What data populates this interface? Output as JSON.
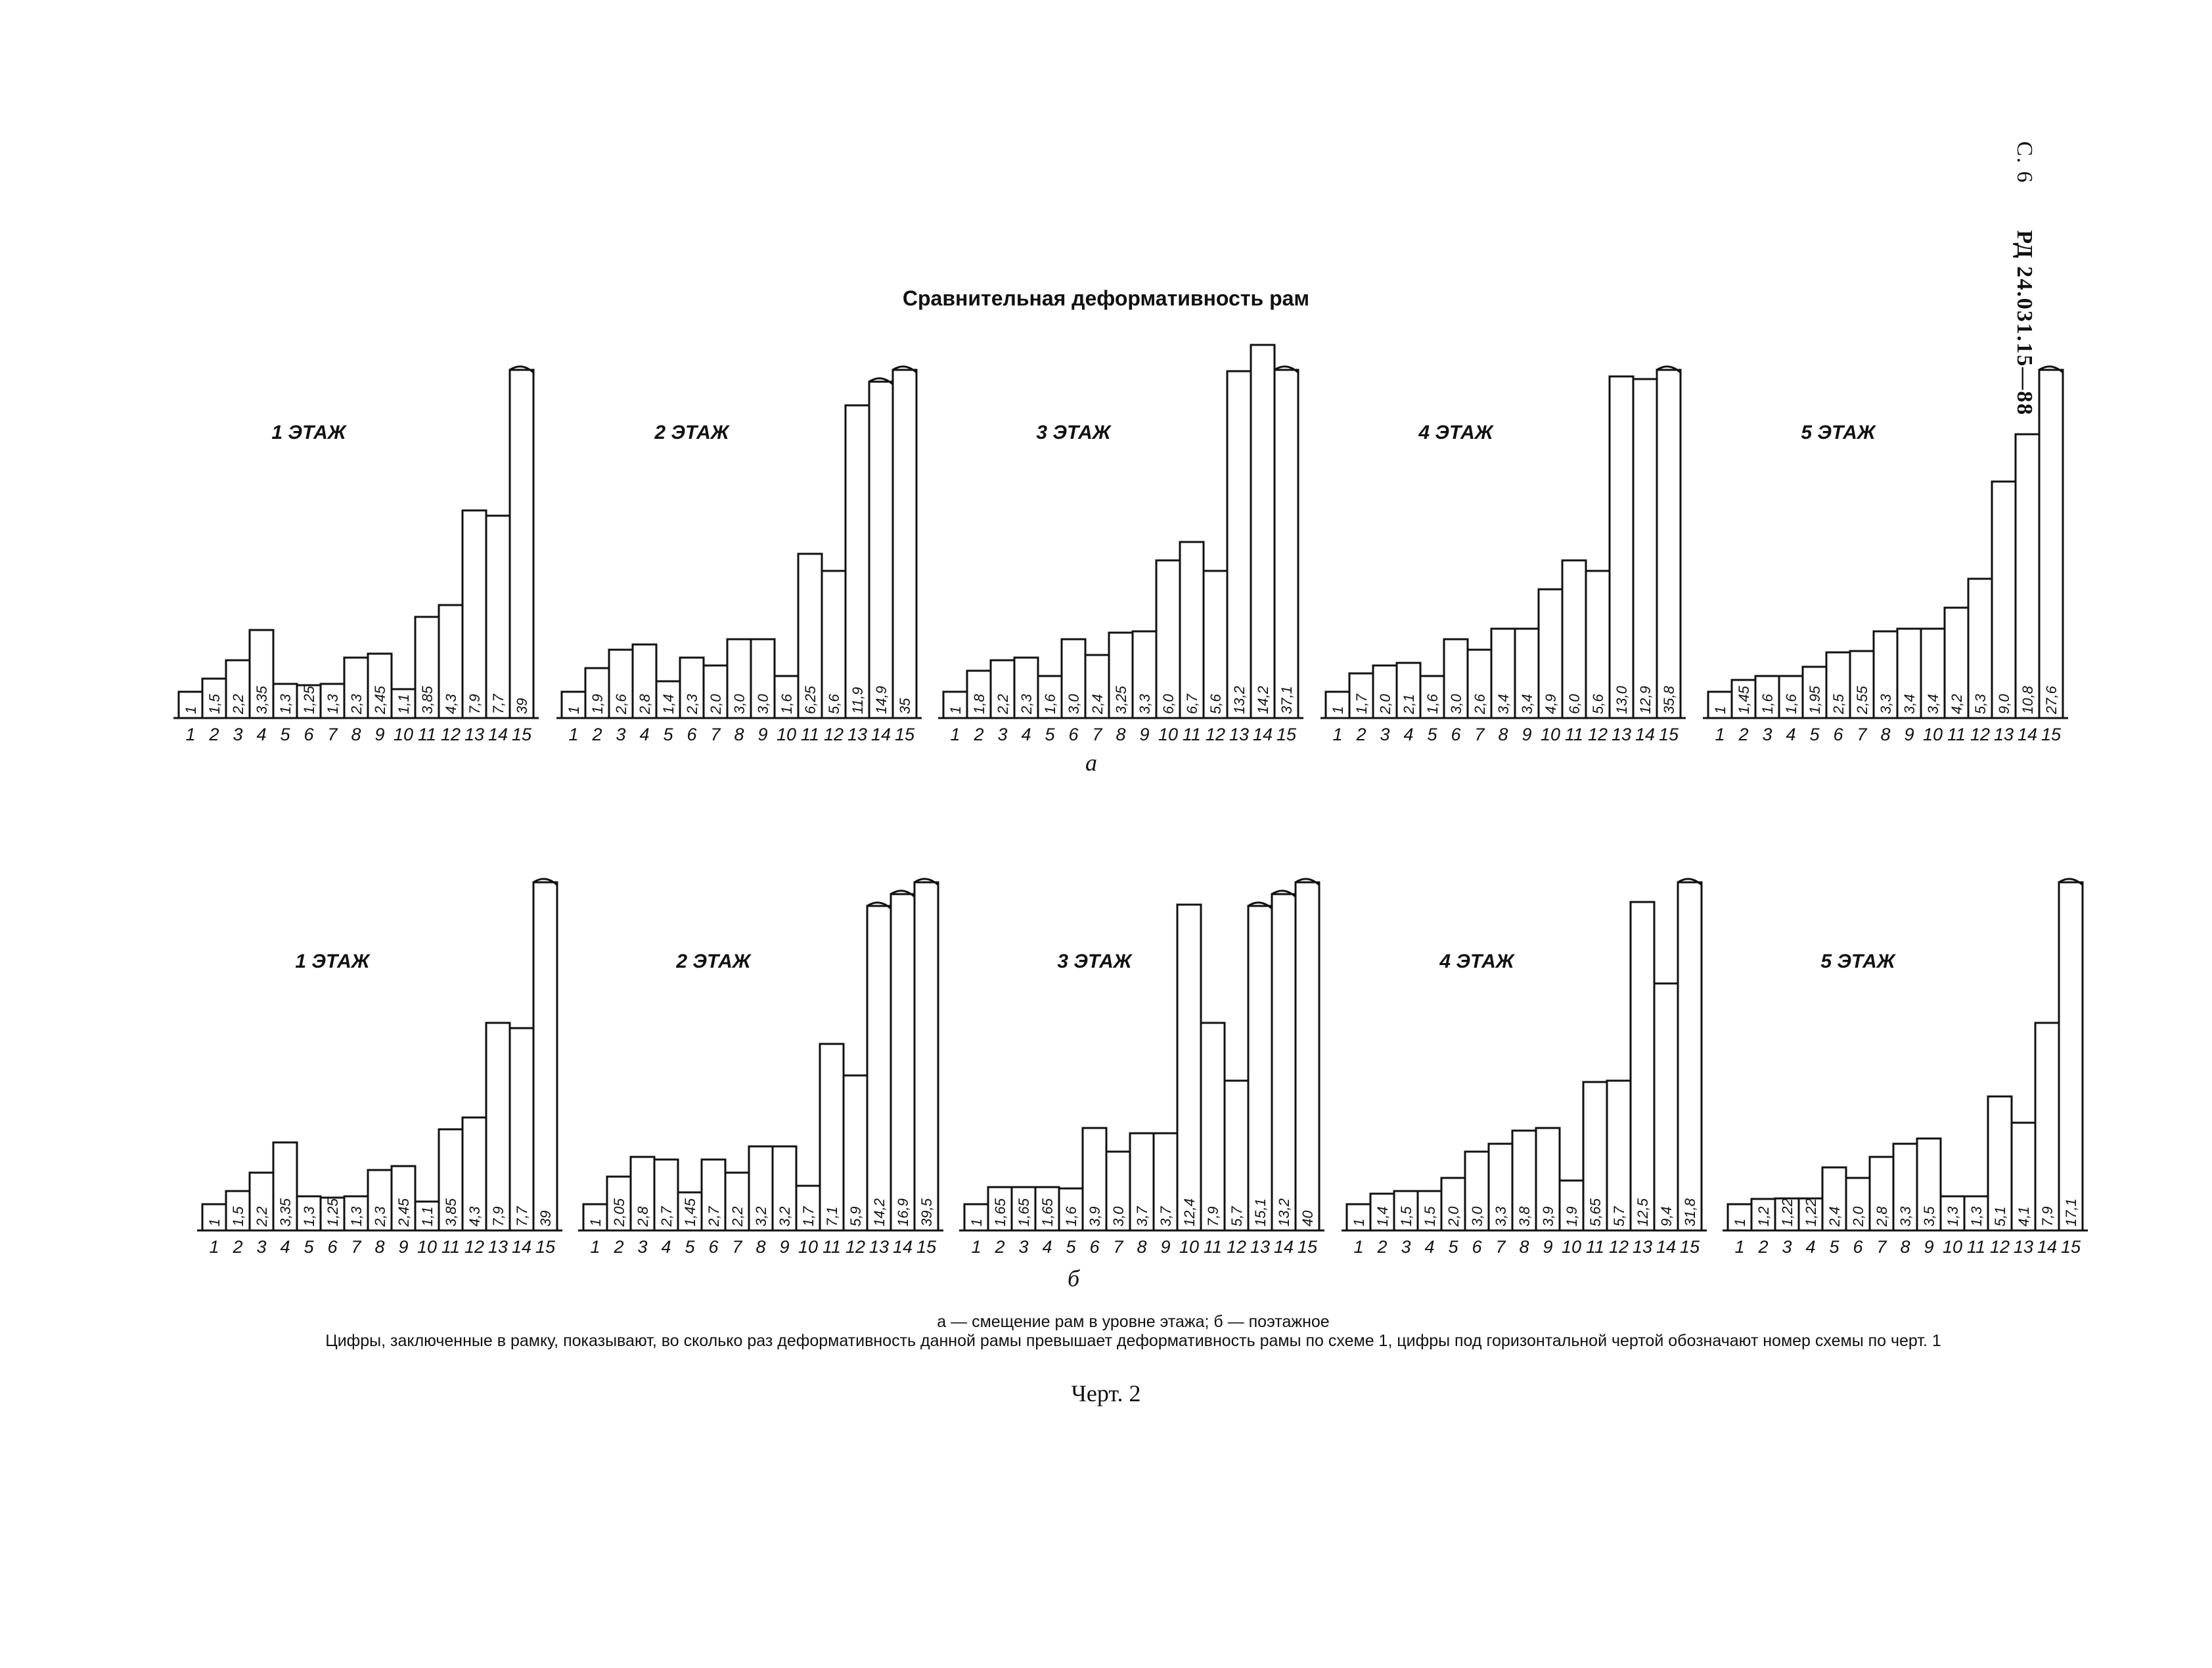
{
  "page": {
    "page_number": "С. 6",
    "doc_code": "РД 24.031.15—88"
  },
  "title": "Сравнительная деформативность рам",
  "row_labels": {
    "a": "а",
    "b": "б"
  },
  "caption": {
    "legend": "а — смещение рам в уровне этажа; б — поэтажное",
    "note": "Цифры, заключенные в рамку, показывают, во сколько раз деформативность данной рамы превышает деформативность рамы по схеме 1, цифры под горизонтальной чертой обозначают номер схемы по черт. 1"
  },
  "figure_label": "Черт. 2",
  "chart_data": [
    {
      "type": "bar",
      "group": "а",
      "title": "1 ЭТАЖ",
      "categories": [
        "1",
        "2",
        "3",
        "4",
        "5",
        "6",
        "7",
        "8",
        "9",
        "10",
        "11",
        "12",
        "13",
        "14",
        "15"
      ],
      "labels": [
        "1",
        "1,5",
        "2,2",
        "3,35",
        "1,3",
        "1,25",
        "1,3",
        "2,3",
        "2,45",
        "1,1",
        "3,85",
        "4,3",
        "7,9",
        "7,7",
        "39"
      ],
      "values": [
        1,
        1.5,
        2.2,
        3.35,
        1.3,
        1.25,
        1.3,
        2.3,
        2.45,
        1.1,
        3.85,
        4.3,
        7.9,
        7.7,
        39
      ],
      "clipped_at": 12
    },
    {
      "type": "bar",
      "group": "а",
      "title": "2 ЭТАЖ",
      "categories": [
        "1",
        "2",
        "3",
        "4",
        "5",
        "6",
        "7",
        "8",
        "9",
        "10",
        "11",
        "12",
        "13",
        "14",
        "15"
      ],
      "labels": [
        "1",
        "1,9",
        "2,6",
        "2,8",
        "1,4",
        "2,3",
        "2,0",
        "3,0",
        "3,0",
        "1,6",
        "6,25",
        "5,6",
        "11,9",
        "14,9",
        "35"
      ],
      "values": [
        1,
        1.9,
        2.6,
        2.8,
        1.4,
        2.3,
        2.0,
        3.0,
        3.0,
        1.6,
        6.25,
        5.6,
        11.9,
        14.9,
        35
      ],
      "clipped_at": 12.5
    },
    {
      "type": "bar",
      "group": "а",
      "title": "3 ЭТАЖ",
      "categories": [
        "1",
        "2",
        "3",
        "4",
        "5",
        "6",
        "7",
        "8",
        "9",
        "10",
        "11",
        "12",
        "13",
        "14",
        "15"
      ],
      "labels": [
        "1",
        "1,8",
        "2,2",
        "2,3",
        "1,6",
        "3,0",
        "2,4",
        "3,25",
        "3,3",
        "6,0",
        "6,7",
        "5,6",
        "13,2",
        "14,2",
        "37,1"
      ],
      "values": [
        1,
        1.8,
        2.2,
        2.3,
        1.6,
        3.0,
        2.4,
        3.25,
        3.3,
        6.0,
        6.7,
        5.6,
        13.2,
        14.2,
        37.1
      ],
      "clipped_at": 15
    },
    {
      "type": "bar",
      "group": "а",
      "title": "4 ЭТАЖ",
      "categories": [
        "1",
        "2",
        "3",
        "4",
        "5",
        "6",
        "7",
        "8",
        "9",
        "10",
        "11",
        "12",
        "13",
        "14",
        "15"
      ],
      "labels": [
        "1",
        "1,7",
        "2,0",
        "2,1",
        "1,6",
        "3,0",
        "2,6",
        "3,4",
        "3,4",
        "4,9",
        "6,0",
        "5,6",
        "13,0",
        "12,9",
        "35,8"
      ],
      "values": [
        1,
        1.7,
        2.0,
        2.1,
        1.6,
        3.0,
        2.6,
        3.4,
        3.4,
        4.9,
        6.0,
        5.6,
        13.0,
        12.9,
        35.8
      ],
      "clipped_at": 14
    },
    {
      "type": "bar",
      "group": "а",
      "title": "5 ЭТАЖ",
      "categories": [
        "1",
        "2",
        "3",
        "4",
        "5",
        "6",
        "7",
        "8",
        "9",
        "10",
        "11",
        "12",
        "13",
        "14",
        "15"
      ],
      "labels": [
        "1",
        "1,45",
        "1,6",
        "1,6",
        "1,95",
        "2,5",
        "2,55",
        "3,3",
        "3,4",
        "3,4",
        "4,2",
        "5,3",
        "9,0",
        "10,8",
        "27,6"
      ],
      "values": [
        1,
        1.45,
        1.6,
        1.6,
        1.95,
        2.5,
        2.55,
        3.3,
        3.4,
        3.4,
        4.2,
        5.3,
        9.0,
        10.8,
        27.6
      ],
      "clipped_at": 14.5
    },
    {
      "type": "bar",
      "group": "б",
      "title": "1 ЭТАЖ",
      "categories": [
        "1",
        "2",
        "3",
        "4",
        "5",
        "6",
        "7",
        "8",
        "9",
        "10",
        "11",
        "12",
        "13",
        "14",
        "15"
      ],
      "labels": [
        "1",
        "1,5",
        "2,2",
        "3,35",
        "1,3",
        "1,25",
        "1,3",
        "2,3",
        "2,45",
        "1,1",
        "3,85",
        "4,3",
        "7,9",
        "7,7",
        "39"
      ],
      "values": [
        1,
        1.5,
        2.2,
        3.35,
        1.3,
        1.25,
        1.3,
        2.3,
        2.45,
        1.1,
        3.85,
        4.3,
        7.9,
        7.7,
        39
      ],
      "clipped_at": 12
    },
    {
      "type": "bar",
      "group": "б",
      "title": "2 ЭТАЖ",
      "categories": [
        "1",
        "2",
        "3",
        "4",
        "5",
        "6",
        "7",
        "8",
        "9",
        "10",
        "11",
        "12",
        "13",
        "14",
        "15"
      ],
      "labels": [
        "1",
        "2,05",
        "2,8",
        "2,7",
        "1,45",
        "2,7",
        "2,2",
        "3,2",
        "3,2",
        "1,7",
        "7,1",
        "5,9",
        "14,2",
        "16,9",
        "39,5"
      ],
      "values": [
        1,
        2.05,
        2.8,
        2.7,
        1.45,
        2.7,
        2.2,
        3.2,
        3.2,
        1.7,
        7.1,
        5.9,
        14.2,
        16.9,
        39.5
      ],
      "clipped_at": 13
    },
    {
      "type": "bar",
      "group": "б",
      "title": "3 ЭТАЖ",
      "categories": [
        "1",
        "2",
        "3",
        "4",
        "5",
        "6",
        "7",
        "8",
        "9",
        "10",
        "11",
        "12",
        "13",
        "14",
        "15"
      ],
      "labels": [
        "1",
        "1,65",
        "1,65",
        "1,65",
        "1,6",
        "3,9",
        "3,0",
        "3,7",
        "3,7",
        "12,4",
        "7,9",
        "5,7",
        "15,1",
        "13,2",
        "40"
      ],
      "values": [
        1,
        1.65,
        1.65,
        1.65,
        1.6,
        3.9,
        3.0,
        3.7,
        3.7,
        12.4,
        7.9,
        5.7,
        15.1,
        13.2,
        40
      ],
      "clipped_at": 12.7
    },
    {
      "type": "bar",
      "group": "б",
      "title": "4 ЭТАЖ",
      "categories": [
        "1",
        "2",
        "3",
        "4",
        "5",
        "6",
        "7",
        "8",
        "9",
        "10",
        "11",
        "12",
        "13",
        "14",
        "15"
      ],
      "labels": [
        "1",
        "1,4",
        "1,5",
        "1,5",
        "2,0",
        "3,0",
        "3,3",
        "3,8",
        "3,9",
        "1,9",
        "5,65",
        "5,7",
        "12,5",
        "9,4",
        "31,8"
      ],
      "values": [
        1,
        1.4,
        1.5,
        1.5,
        2.0,
        3.0,
        3.3,
        3.8,
        3.9,
        1.9,
        5.65,
        5.7,
        12.5,
        9.4,
        31.8
      ],
      "clipped_at": 14.5
    },
    {
      "type": "bar",
      "group": "б",
      "title": "5 ЭТАЖ",
      "categories": [
        "1",
        "2",
        "3",
        "4",
        "5",
        "6",
        "7",
        "8",
        "9",
        "10",
        "11",
        "12",
        "13",
        "14",
        "15"
      ],
      "labels": [
        "1",
        "1,2",
        "1,22",
        "1,22",
        "2,4",
        "2,0",
        "2,8",
        "3,3",
        "3,5",
        "1,3",
        "1,3",
        "5,1",
        "4,1",
        "7,9",
        "17,1"
      ],
      "values": [
        1,
        1.2,
        1.22,
        1.22,
        2.4,
        2.0,
        2.8,
        3.3,
        3.5,
        1.3,
        1.3,
        5.1,
        4.1,
        7.9,
        17.1
      ],
      "clipped_at": 13.5
    }
  ]
}
